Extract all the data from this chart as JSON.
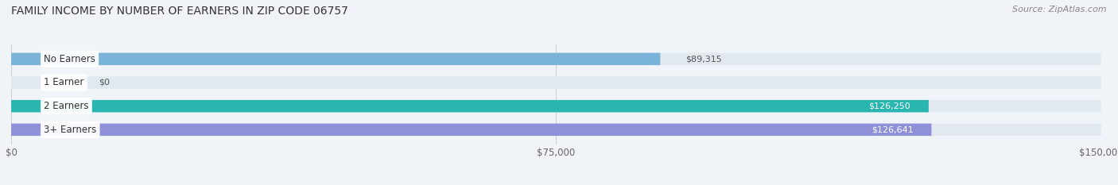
{
  "title": "FAMILY INCOME BY NUMBER OF EARNERS IN ZIP CODE 06757",
  "source": "Source: ZipAtlas.com",
  "categories": [
    "No Earners",
    "1 Earner",
    "2 Earners",
    "3+ Earners"
  ],
  "values": [
    89315,
    0,
    126250,
    126641
  ],
  "bar_colors": [
    "#7ab3d9",
    "#c4a0c8",
    "#2ab5b0",
    "#9090d8"
  ],
  "label_colors": [
    "#444444",
    "#444444",
    "#ffffff",
    "#ffffff"
  ],
  "value_labels": [
    "$89,315",
    "$0",
    "$126,250",
    "$126,641"
  ],
  "value_inside": [
    false,
    false,
    true,
    true
  ],
  "xlim": [
    0,
    150000
  ],
  "xticks": [
    0,
    75000,
    150000
  ],
  "xticklabels": [
    "$0",
    "$75,000",
    "$150,000"
  ],
  "background_color": "#f0f4f8",
  "bar_bg_color": "#e2e8ef",
  "title_fontsize": 10,
  "source_fontsize": 8,
  "bar_height": 0.52
}
